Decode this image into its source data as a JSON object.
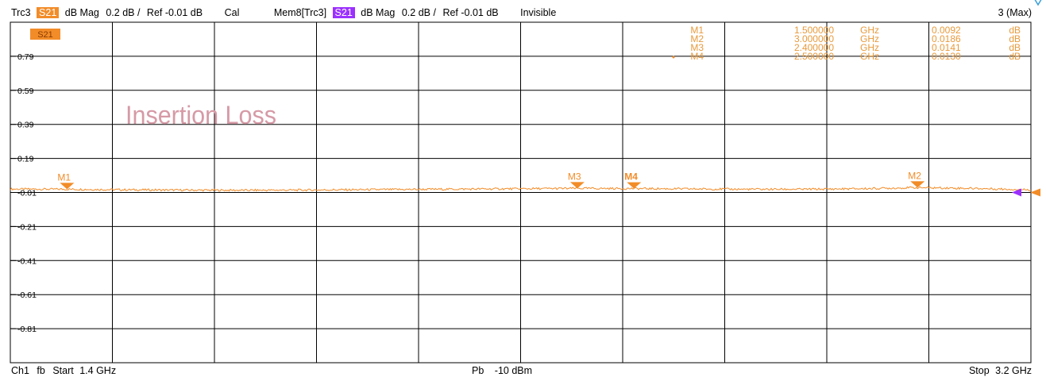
{
  "header": {
    "trc3": "Trc3",
    "s21_tag": "S21",
    "trace1_format": "dB Mag",
    "trace1_scale": "0.2 dB /",
    "trace1_ref": "Ref -0.01 dB",
    "cal": "Cal",
    "mem_label": "Mem8[Trc3]",
    "s21_tag2": "S21",
    "trace2_format": "dB Mag",
    "trace2_scale": "0.2 dB /",
    "trace2_ref": "Ref -0.01 dB",
    "invisible": "Invisible",
    "max_label": "3 (Max)"
  },
  "footer": {
    "ch1": "Ch1",
    "fb": "fb",
    "start": "Start",
    "start_value": "1.4 GHz",
    "pb": "Pb",
    "power": "-10 dBm",
    "stop": "Stop",
    "stop_value": "3.2 GHz"
  },
  "plot": {
    "trace_badge": "S21",
    "annotation": "Insertion Loss",
    "trace_color": "#f28c28",
    "ref_marker_color": "#9b30ff",
    "icon": "triangle-outline-icon"
  },
  "marker_table": [
    {
      "name": "M1",
      "freq": "1.500000",
      "freq_unit": "GHz",
      "value": "0.0092",
      "value_unit": "dB"
    },
    {
      "name": "M2",
      "freq": "3.000000",
      "freq_unit": "GHz",
      "value": "0.0186",
      "value_unit": "dB"
    },
    {
      "name": "M3",
      "freq": "2.400000",
      "freq_unit": "GHz",
      "value": "0.0141",
      "value_unit": "dB"
    },
    {
      "name": "M4",
      "freq": "2.500000",
      "freq_unit": "GHz",
      "value": "0.0130",
      "value_unit": "dB"
    }
  ],
  "chart_data": {
    "type": "line",
    "title": "Insertion Loss",
    "xlabel": "",
    "ylabel": "",
    "x_start_ghz": 1.4,
    "x_stop_ghz": 3.2,
    "ylim": [
      -1.01,
      0.99
    ],
    "y_ticks": [
      0.79,
      0.59,
      0.39,
      0.19,
      -0.01,
      -0.21,
      -0.41,
      -0.61,
      -0.81
    ],
    "y_tick_labels": [
      "0.79",
      "0.59",
      "0.39",
      "0.19",
      "-0.01",
      "-0.21",
      "-0.41",
      "-0.61",
      "-0.81"
    ],
    "x_divisions": 10,
    "grid": true,
    "series": [
      {
        "name": "S21",
        "x": [
          1.4,
          1.5,
          1.6,
          1.7,
          1.8,
          1.9,
          2.0,
          2.1,
          2.2,
          2.3,
          2.4,
          2.5,
          2.6,
          2.7,
          2.8,
          2.9,
          3.0,
          3.1,
          3.2
        ],
        "values": [
          0.01,
          0.0092,
          0.006,
          0.004,
          0.003,
          0.004,
          0.006,
          0.008,
          0.01,
          0.012,
          0.0141,
          0.013,
          0.011,
          0.009,
          0.009,
          0.012,
          0.0186,
          0.014,
          0.006
        ]
      }
    ],
    "markers": [
      {
        "name": "M1",
        "x": 1.5,
        "y": 0.0092
      },
      {
        "name": "M2",
        "x": 3.0,
        "y": 0.0186
      },
      {
        "name": "M3",
        "x": 2.4,
        "y": 0.0141
      },
      {
        "name": "M4",
        "x": 2.5,
        "y": 0.013,
        "active": true
      }
    ]
  }
}
